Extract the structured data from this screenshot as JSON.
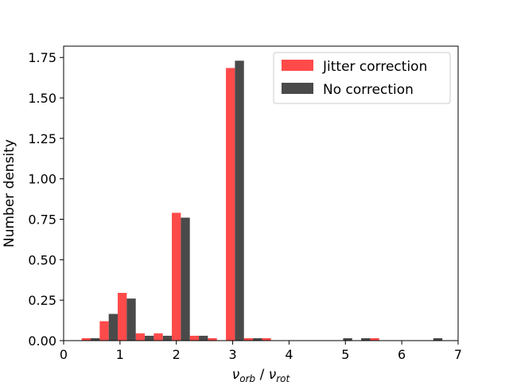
{
  "chart_data": {
    "type": "bar",
    "xlabel": {
      "symbol": "ν",
      "num_sub": "orb",
      "sep": " / ",
      "den_sub": "rot"
    },
    "ylabel": "Number density",
    "xlim": [
      0,
      7
    ],
    "ylim": [
      0,
      1.82
    ],
    "xticks": [
      0,
      1,
      2,
      3,
      4,
      5,
      6,
      7
    ],
    "xtick_labels": [
      "0",
      "1",
      "2",
      "3",
      "4",
      "5",
      "6",
      "7"
    ],
    "yticks": [
      0,
      0.25,
      0.5,
      0.75,
      1.0,
      1.25,
      1.5,
      1.75
    ],
    "ytick_labels": [
      "0.00",
      "0.25",
      "0.50",
      "0.75",
      "1.00",
      "1.25",
      "1.50",
      "1.75"
    ],
    "bin_width": 0.32,
    "bin_starts": [
      0.32,
      0.64,
      0.96,
      1.28,
      1.6,
      1.92,
      2.24,
      2.56,
      2.88,
      3.2,
      3.52,
      3.84,
      4.16,
      4.48,
      4.8,
      5.12,
      5.44,
      5.76,
      6.08,
      6.4
    ],
    "grid": false,
    "legend_position": "top-right",
    "series": [
      {
        "name": "Jitter correction",
        "color": "#ff4a4a",
        "values": [
          0.015,
          0.12,
          0.295,
          0.045,
          0.045,
          0.79,
          0.03,
          0.015,
          1.685,
          0.015,
          0.015,
          0,
          0,
          0,
          0,
          0,
          0.015,
          0,
          0,
          0
        ]
      },
      {
        "name": "No correction",
        "color": "#4a4a4a",
        "values": [
          0.015,
          0.165,
          0.26,
          0.03,
          0.03,
          0.76,
          0.03,
          0,
          1.73,
          0.015,
          0,
          0,
          0,
          0,
          0.015,
          0.015,
          0,
          0,
          0,
          0.015
        ]
      }
    ]
  }
}
